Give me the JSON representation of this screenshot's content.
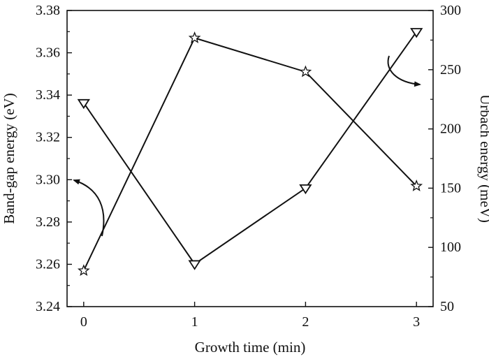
{
  "chart_data": {
    "type": "line",
    "x": [
      0,
      1,
      2,
      3
    ],
    "xlabel": "Growth time (min)",
    "xlim": [
      -0.15,
      3.15
    ],
    "x_ticks": [
      "0",
      "1",
      "2",
      "3"
    ],
    "ylabel_left": "Band-gap energy (eV)",
    "ylim_left": [
      3.24,
      3.38
    ],
    "y_ticks_left": [
      "3.24",
      "3.26",
      "3.28",
      "3.30",
      "3.32",
      "3.34",
      "3.36",
      "3.38"
    ],
    "ylabel_right": "Urbach energy (meV)",
    "ylim_right": [
      50,
      300
    ],
    "y_ticks_right": [
      "50",
      "100",
      "150",
      "200",
      "250",
      "300"
    ],
    "grid": false,
    "series": [
      {
        "axis": "left",
        "marker": "star",
        "values": [
          3.257,
          3.367,
          3.351,
          3.297
        ]
      },
      {
        "axis": "right",
        "marker": "triangle-down",
        "values": [
          222,
          86,
          150,
          282
        ]
      }
    ],
    "annotations": [
      {
        "type": "curved-arrow",
        "points_to": "left axis",
        "series_axis": "left"
      },
      {
        "type": "curved-arrow",
        "points_to": "right axis",
        "series_axis": "right"
      }
    ]
  },
  "colors": {
    "line": "#111111",
    "background": "#ffffff"
  }
}
